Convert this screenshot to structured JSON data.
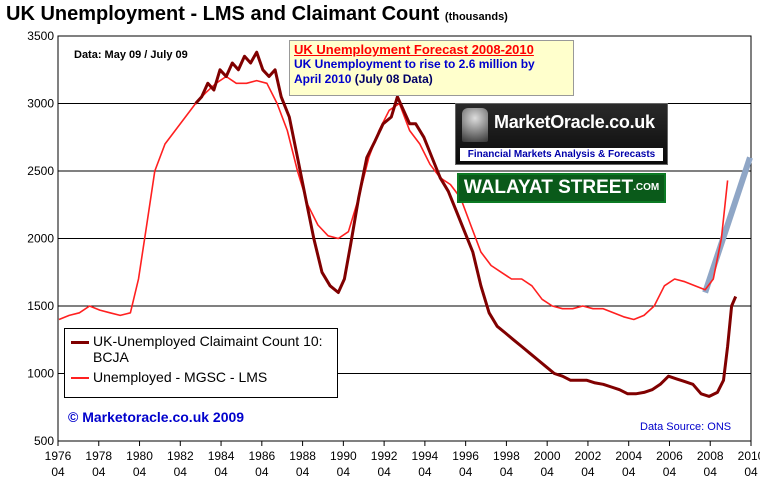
{
  "title": "UK Unemployment - LMS and Claimant Count",
  "title_units": "(thousands)",
  "data_note": "Data: May 09 / July 09",
  "forecast": {
    "title": "UK Unemployment  Forecast  2008-2010",
    "line1": "UK Unemployment to rise to 2.6 million by",
    "line2": "April 2010",
    "line2_suffix": "(July 08 Data)"
  },
  "logos": {
    "marketoracle_name": "MarketOracle.co.uk",
    "marketoracle_tagline": "Financial Markets Analysis & Forecasts",
    "walayat_name": "WALAYAT STREET",
    "walayat_suffix": ".COM"
  },
  "copyright": "© Marketoracle.co.uk  2009",
  "source": "Data Source: ONS",
  "legend": [
    {
      "label": "UK-Unemployed Claimaint Count 10: BCJA",
      "color": "#800000"
    },
    {
      "label": "Unemployed - MGSC - LMS",
      "color": "#ff2020"
    }
  ],
  "chart_data": {
    "type": "line",
    "title": "UK Unemployment - LMS and Claimant Count",
    "ylabel": "(thousands)",
    "ylim": [
      500,
      3500
    ],
    "yticks": [
      500,
      1000,
      1500,
      2000,
      2500,
      3000,
      3500
    ],
    "xlim": [
      1976.25,
      2010.25
    ],
    "xticks": [
      {
        "year": "1976",
        "sub": "04"
      },
      {
        "year": "1978",
        "sub": "04"
      },
      {
        "year": "1980",
        "sub": "04"
      },
      {
        "year": "1982",
        "sub": "04"
      },
      {
        "year": "1984",
        "sub": "04"
      },
      {
        "year": "1986",
        "sub": "04"
      },
      {
        "year": "1988",
        "sub": "04"
      },
      {
        "year": "1990",
        "sub": "04"
      },
      {
        "year": "1992",
        "sub": "04"
      },
      {
        "year": "1994",
        "sub": "04"
      },
      {
        "year": "1996",
        "sub": "04"
      },
      {
        "year": "1998",
        "sub": "04"
      },
      {
        "year": "2000",
        "sub": "04"
      },
      {
        "year": "2002",
        "sub": "04"
      },
      {
        "year": "2004",
        "sub": "04"
      },
      {
        "year": "2006",
        "sub": "04"
      },
      {
        "year": "2008",
        "sub": "04"
      },
      {
        "year": "2010",
        "sub": "04"
      }
    ],
    "grid": "horizontal",
    "series": [
      {
        "name": "UK-Unemployed Claimaint Count 10: BCJA",
        "color": "#800000",
        "x": [
          1983.0,
          1983.3,
          1983.6,
          1983.9,
          1984.2,
          1984.5,
          1984.8,
          1985.1,
          1985.4,
          1985.7,
          1986.0,
          1986.3,
          1986.6,
          1986.9,
          1987.2,
          1987.6,
          1988.0,
          1988.4,
          1988.8,
          1989.2,
          1989.6,
          1990.0,
          1990.3,
          1990.6,
          1991.0,
          1991.4,
          1991.8,
          1992.2,
          1992.6,
          1992.9,
          1993.2,
          1993.5,
          1993.8,
          1994.2,
          1994.6,
          1995.0,
          1995.4,
          1995.8,
          1996.2,
          1996.6,
          1997.0,
          1997.4,
          1997.8,
          1998.2,
          1998.6,
          1999.0,
          1999.4,
          1999.8,
          2000.2,
          2000.6,
          2001.0,
          2001.4,
          2001.8,
          2002.2,
          2002.6,
          2003.0,
          2003.4,
          2003.8,
          2004.2,
          2004.6,
          2005.0,
          2005.4,
          2005.8,
          2006.2,
          2006.6,
          2007.0,
          2007.4,
          2007.8,
          2008.2,
          2008.6,
          2008.9,
          2009.1,
          2009.3,
          2009.5
        ],
        "y": [
          3000,
          3050,
          3150,
          3100,
          3250,
          3200,
          3300,
          3250,
          3350,
          3300,
          3380,
          3250,
          3200,
          3250,
          3050,
          2900,
          2600,
          2300,
          2000,
          1750,
          1650,
          1600,
          1700,
          1950,
          2300,
          2600,
          2720,
          2850,
          2900,
          3050,
          2950,
          2850,
          2850,
          2750,
          2600,
          2450,
          2350,
          2200,
          2050,
          1900,
          1650,
          1450,
          1350,
          1300,
          1250,
          1200,
          1150,
          1100,
          1050,
          1000,
          980,
          950,
          950,
          950,
          930,
          920,
          900,
          880,
          850,
          850,
          860,
          880,
          920,
          980,
          960,
          940,
          920,
          850,
          830,
          860,
          950,
          1200,
          1500,
          1570
        ]
      },
      {
        "name": "Unemployed - MGSC - LMS",
        "color": "#ff2020",
        "x": [
          1976.3,
          1976.8,
          1977.3,
          1977.8,
          1978.3,
          1978.8,
          1979.3,
          1979.8,
          1980.2,
          1980.6,
          1981.0,
          1981.5,
          1982.0,
          1982.5,
          1983.0,
          1983.5,
          1984.0,
          1984.5,
          1985.0,
          1985.5,
          1986.0,
          1986.5,
          1987.0,
          1987.5,
          1988.0,
          1988.5,
          1989.0,
          1989.5,
          1990.0,
          1990.5,
          1991.0,
          1991.5,
          1992.0,
          1992.5,
          1993.0,
          1993.5,
          1994.0,
          1994.5,
          1995.0,
          1995.5,
          1996.0,
          1996.5,
          1997.0,
          1997.5,
          1998.0,
          1998.5,
          1999.0,
          1999.5,
          2000.0,
          2000.5,
          2001.0,
          2001.5,
          2002.0,
          2002.5,
          2003.0,
          2003.5,
          2004.0,
          2004.5,
          2005.0,
          2005.5,
          2006.0,
          2006.5,
          2007.0,
          2007.5,
          2008.0,
          2008.4,
          2008.8,
          2009.1
        ],
        "y": [
          1400,
          1430,
          1450,
          1500,
          1470,
          1450,
          1430,
          1450,
          1700,
          2100,
          2500,
          2700,
          2800,
          2900,
          3000,
          3080,
          3150,
          3200,
          3150,
          3150,
          3170,
          3150,
          3000,
          2800,
          2500,
          2250,
          2100,
          2020,
          2000,
          2050,
          2300,
          2600,
          2800,
          2950,
          3000,
          2800,
          2700,
          2550,
          2450,
          2400,
          2300,
          2100,
          1900,
          1800,
          1750,
          1700,
          1700,
          1650,
          1550,
          1500,
          1480,
          1480,
          1500,
          1480,
          1480,
          1450,
          1420,
          1400,
          1430,
          1500,
          1650,
          1700,
          1680,
          1650,
          1620,
          1700,
          2000,
          2430
        ]
      }
    ],
    "forecast_projection": {
      "x": [
        2008.0,
        2010.2
      ],
      "y": [
        1600,
        2600
      ]
    }
  }
}
